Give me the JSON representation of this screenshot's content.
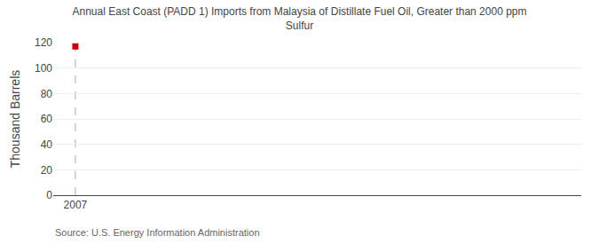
{
  "chart_data": {
    "type": "scatter",
    "title": "Annual East Coast (PADD 1) Imports from Malaysia of Distillate Fuel Oil, Greater than 2000 ppm\nSulfur",
    "y_label": "Thousand Barrels",
    "source": "Source: U.S. Energy Information Administration",
    "x": [
      2007
    ],
    "values": [
      117
    ],
    "color": "#cc0000",
    "marker": "square",
    "xlim": [
      2006.3,
      2023
    ],
    "xticks": [
      2007
    ],
    "ylim": [
      0,
      120
    ],
    "yticks": [
      0,
      20,
      40,
      60,
      80,
      100,
      120
    ],
    "vline": 2007,
    "grid": true
  }
}
